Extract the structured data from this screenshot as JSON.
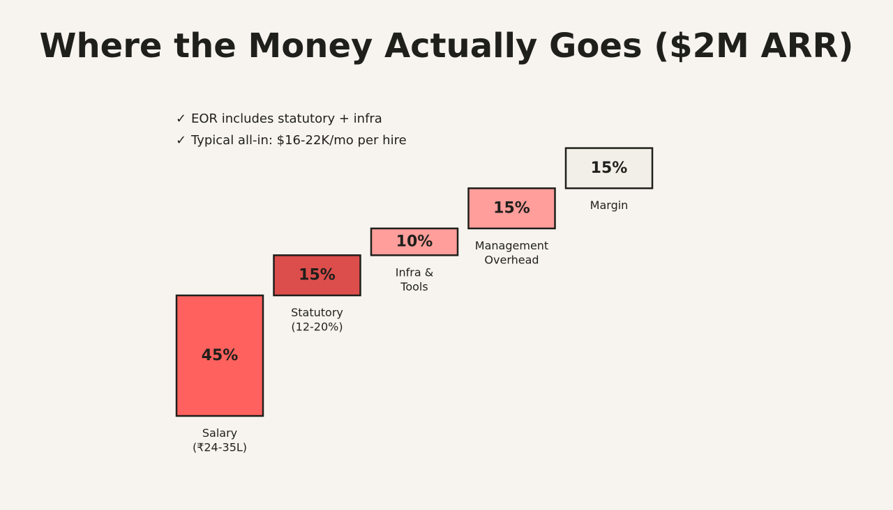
{
  "title": "Where the Money Actually Goes ($2M ARR)",
  "notes": [
    {
      "check": "✓",
      "text": "EOR includes statutory + infra"
    },
    {
      "check": "✓",
      "text": "Typical all-in: $16-22K/mo per hire"
    }
  ],
  "chart_data": {
    "type": "bar",
    "subtype": "waterfall",
    "title": "Where the Money Actually Goes ($2M ARR)",
    "categories": [
      "Salary\n(₹24-35L)",
      "Statutory\n(12-20%)",
      "Infra &\nTools",
      "Management\nOverhead",
      "Margin"
    ],
    "values": [
      45,
      15,
      10,
      15,
      15
    ],
    "value_labels": [
      "45%",
      "15%",
      "10%",
      "15%",
      "15%"
    ],
    "unit": "%",
    "colors": [
      "#ff625e",
      "#dc4e4b",
      "#ff9e9b",
      "#ff9e9b",
      "#f2efe8"
    ],
    "border_color": "#1f1f1b",
    "axes_visible": false,
    "grid": false
  }
}
